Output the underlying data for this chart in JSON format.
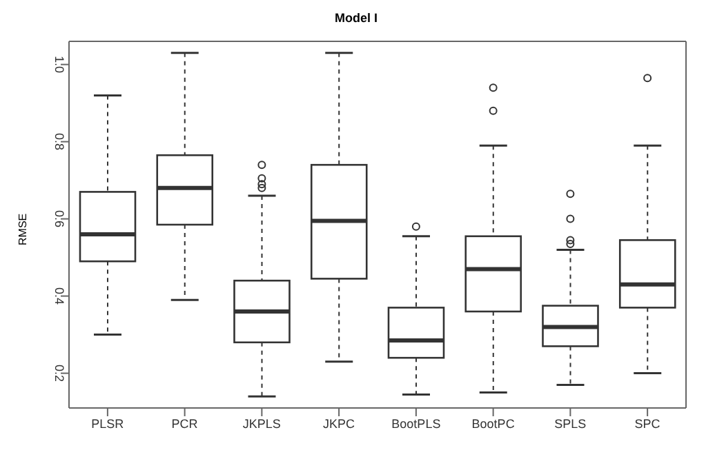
{
  "chart_data": {
    "type": "box",
    "title": "Model I",
    "ylabel": "RMSE",
    "categories": [
      "PLSR",
      "PCR",
      "JKPLS",
      "JKPC",
      "BootPLS",
      "BootPC",
      "SPLS",
      "SPC"
    ],
    "boxes": [
      {
        "low": 0.3,
        "q1": 0.49,
        "median": 0.56,
        "q3": 0.67,
        "high": 0.92
      },
      {
        "low": 0.39,
        "q1": 0.585,
        "median": 0.68,
        "q3": 0.765,
        "high": 1.03
      },
      {
        "low": 0.14,
        "q1": 0.28,
        "median": 0.36,
        "q3": 0.44,
        "high": 0.66,
        "outliers": [
          0.68,
          0.69,
          0.705,
          0.74
        ]
      },
      {
        "low": 0.23,
        "q1": 0.445,
        "median": 0.595,
        "q3": 0.74,
        "high": 1.03
      },
      {
        "low": 0.145,
        "q1": 0.24,
        "median": 0.285,
        "q3": 0.37,
        "high": 0.555,
        "outliers": [
          0.58
        ]
      },
      {
        "low": 0.15,
        "q1": 0.36,
        "median": 0.47,
        "q3": 0.555,
        "high": 0.79,
        "outliers": [
          0.88,
          0.94
        ]
      },
      {
        "low": 0.17,
        "q1": 0.27,
        "median": 0.32,
        "q3": 0.375,
        "high": 0.52,
        "outliers": [
          0.535,
          0.545,
          0.6,
          0.665
        ]
      },
      {
        "low": 0.2,
        "q1": 0.37,
        "median": 0.43,
        "q3": 0.545,
        "high": 0.79,
        "outliers": [
          0.965
        ]
      }
    ],
    "color": "#333333",
    "ylim": [
      0.11,
      1.06
    ],
    "yticks": [
      0.2,
      0.4,
      0.6,
      0.8,
      {
        "value": 1,
        "label": "1.0"
      }
    ]
  }
}
